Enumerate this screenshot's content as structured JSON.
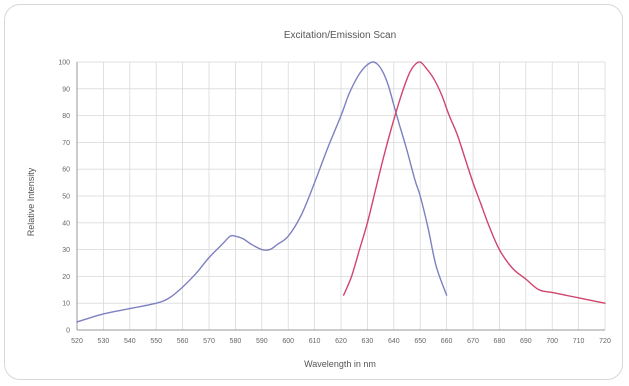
{
  "chart_data": {
    "type": "line",
    "title": "Excitation/Emission Scan",
    "xlabel": "Wavelength in nm",
    "ylabel": "Relative Intensity",
    "xlim": [
      520,
      720
    ],
    "ylim": [
      0,
      100
    ],
    "x_ticks": [
      520,
      530,
      540,
      550,
      560,
      570,
      580,
      590,
      600,
      610,
      620,
      630,
      640,
      650,
      660,
      670,
      680,
      690,
      700,
      710,
      720
    ],
    "y_ticks": [
      0,
      10,
      20,
      30,
      40,
      50,
      60,
      70,
      80,
      90,
      100
    ],
    "grid": true,
    "legend": "none",
    "series": [
      {
        "color": "#7d80c2",
        "x": [
          520,
          530,
          540,
          550,
          555,
          560,
          565,
          570,
          575,
          578,
          580,
          583,
          586,
          590,
          593,
          596,
          600,
          605,
          610,
          615,
          620,
          623,
          626,
          628,
          630,
          632,
          634,
          636,
          638,
          640,
          642,
          645,
          648,
          650,
          653,
          656,
          660
        ],
        "y": [
          3,
          6,
          8,
          10,
          12,
          16,
          21,
          27,
          32,
          35,
          35,
          34,
          32,
          30,
          30,
          32,
          35,
          43,
          55,
          68,
          80,
          88,
          94,
          97,
          99,
          100,
          99,
          96,
          91,
          84,
          77,
          67,
          56,
          50,
          38,
          24,
          13
        ]
      },
      {
        "color": "#d0456c",
        "x": [
          621,
          624,
          627,
          630,
          633,
          636,
          639,
          642,
          644,
          646,
          648,
          650,
          652,
          655,
          658,
          661,
          664,
          667,
          670,
          673,
          676,
          680,
          685,
          690,
          695,
          700,
          705,
          710,
          715,
          720
        ],
        "y": [
          13,
          20,
          30,
          40,
          52,
          64,
          75,
          85,
          91,
          96,
          99,
          100,
          98,
          94,
          88,
          80,
          73,
          64,
          55,
          47,
          39,
          30,
          23,
          19,
          15,
          14,
          13,
          12,
          11,
          10
        ]
      }
    ]
  }
}
